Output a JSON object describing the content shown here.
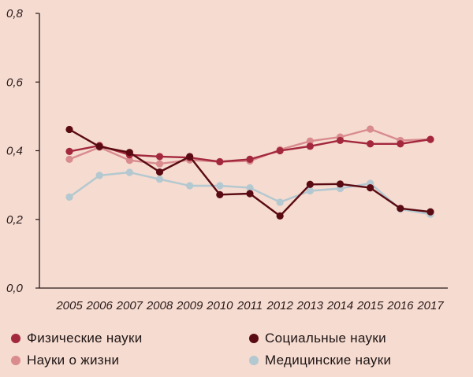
{
  "chart_data": {
    "type": "line",
    "x": [
      "2005",
      "2006",
      "2007",
      "2008",
      "2009",
      "2010",
      "2011",
      "2012",
      "2013",
      "2014",
      "2015",
      "2016",
      "2017"
    ],
    "ylim": [
      0,
      0.8
    ],
    "yticks": [
      "0,0",
      "0,2",
      "0,4",
      "0,6",
      "0,8"
    ],
    "ytick_values": [
      0,
      0.2,
      0.4,
      0.6,
      0.8
    ],
    "legend_position": "bottom",
    "grid": false,
    "series": [
      {
        "name": "Физические науки",
        "color": "#a3283d",
        "values": [
          0.398,
          0.415,
          0.388,
          0.383,
          0.38,
          0.368,
          0.375,
          0.4,
          0.413,
          0.43,
          0.42,
          0.42,
          0.433
        ]
      },
      {
        "name": "Социальные науки",
        "color": "#5a0a12",
        "values": [
          0.462,
          0.412,
          0.395,
          0.338,
          0.383,
          0.272,
          0.275,
          0.21,
          0.302,
          0.303,
          0.292,
          0.232,
          0.222
        ]
      },
      {
        "name": "Науки о жизни",
        "color": "#d98b8e",
        "values": [
          0.375,
          0.41,
          0.372,
          0.362,
          0.373,
          0.368,
          0.37,
          0.403,
          0.428,
          0.44,
          0.463,
          0.43,
          0.433
        ]
      },
      {
        "name": "Медицинские науки",
        "color": "#b3c8d0",
        "values": [
          0.265,
          0.328,
          0.337,
          0.317,
          0.298,
          0.298,
          0.292,
          0.25,
          0.283,
          0.29,
          0.305,
          0.23,
          0.215
        ]
      }
    ]
  }
}
